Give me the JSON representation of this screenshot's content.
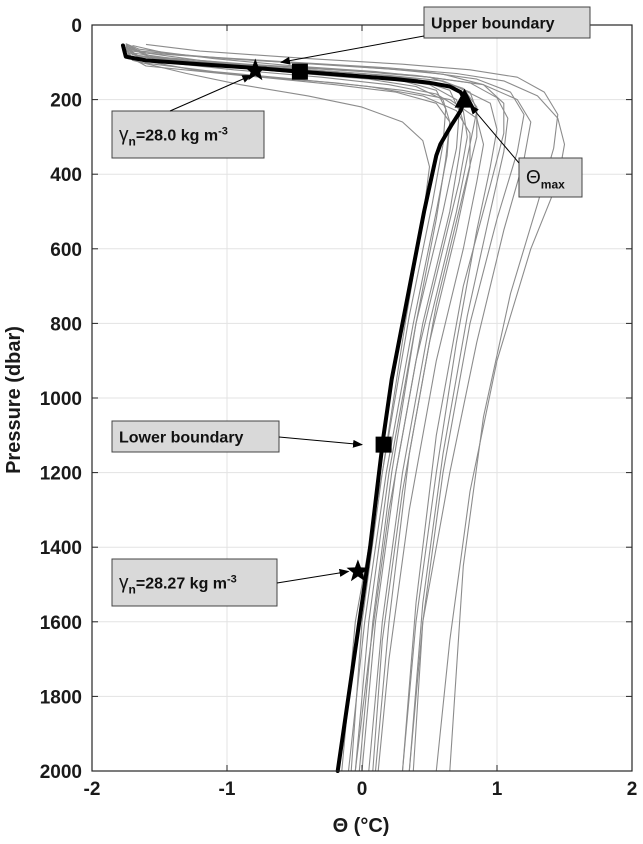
{
  "chart_data": {
    "type": "line",
    "xlabel": "Θ (°C)",
    "ylabel": "Pressure (dbar)",
    "xlim": [
      -2,
      2
    ],
    "ylim": [
      2000,
      0
    ],
    "y_reversed": true,
    "grid": true,
    "xticks": [
      -2,
      -1,
      0,
      1,
      2
    ],
    "yticks": [
      0,
      200,
      400,
      600,
      800,
      1000,
      1200,
      1400,
      1600,
      1800,
      2000
    ],
    "colors": {
      "ensemble": "#8c8c8c",
      "mean": "#000000",
      "grid": "#e3e3e3",
      "annot_box": "#d9d9d9"
    },
    "ensemble_profiles": [
      {
        "points": [
          [
            -1.75,
            55
          ],
          [
            -1.7,
            80
          ],
          [
            -1.1,
            105
          ],
          [
            -0.5,
            125
          ],
          [
            0.1,
            140
          ],
          [
            0.5,
            160
          ],
          [
            0.7,
            200
          ],
          [
            0.75,
            260
          ],
          [
            0.72,
            350
          ],
          [
            0.65,
            500
          ],
          [
            0.45,
            800
          ],
          [
            0.25,
            1200
          ],
          [
            0.1,
            1600
          ],
          [
            0.0,
            2000
          ]
        ]
      },
      {
        "points": [
          [
            -1.75,
            60
          ],
          [
            -1.65,
            85
          ],
          [
            -1.0,
            105
          ],
          [
            -0.4,
            120
          ],
          [
            0.2,
            135
          ],
          [
            0.6,
            150
          ],
          [
            0.8,
            180
          ],
          [
            0.85,
            230
          ],
          [
            0.8,
            320
          ],
          [
            0.7,
            500
          ],
          [
            0.5,
            800
          ],
          [
            0.3,
            1200
          ],
          [
            0.15,
            1600
          ],
          [
            0.05,
            2000
          ]
        ]
      },
      {
        "points": [
          [
            -1.75,
            50
          ],
          [
            -1.7,
            70
          ],
          [
            -1.2,
            95
          ],
          [
            -0.6,
            115
          ],
          [
            0.0,
            130
          ],
          [
            0.4,
            145
          ],
          [
            0.65,
            175
          ],
          [
            0.72,
            230
          ],
          [
            0.7,
            330
          ],
          [
            0.6,
            500
          ],
          [
            0.4,
            800
          ],
          [
            0.2,
            1200
          ],
          [
            0.05,
            1600
          ],
          [
            -0.05,
            2000
          ]
        ]
      },
      {
        "points": [
          [
            -1.75,
            65
          ],
          [
            -1.6,
            95
          ],
          [
            -0.9,
            115
          ],
          [
            -0.2,
            130
          ],
          [
            0.3,
            145
          ],
          [
            0.7,
            165
          ],
          [
            0.95,
            210
          ],
          [
            1.0,
            280
          ],
          [
            0.95,
            380
          ],
          [
            0.85,
            550
          ],
          [
            0.7,
            850
          ],
          [
            0.55,
            1200
          ],
          [
            0.4,
            1600
          ],
          [
            0.3,
            2000
          ]
        ]
      },
      {
        "points": [
          [
            -1.75,
            55
          ],
          [
            -1.55,
            90
          ],
          [
            -0.7,
            110
          ],
          [
            0.0,
            125
          ],
          [
            0.5,
            140
          ],
          [
            0.9,
            160
          ],
          [
            1.15,
            200
          ],
          [
            1.25,
            260
          ],
          [
            1.2,
            360
          ],
          [
            1.05,
            550
          ],
          [
            0.85,
            850
          ],
          [
            0.65,
            1200
          ],
          [
            0.45,
            1600
          ],
          [
            0.35,
            2000
          ]
        ]
      },
      {
        "points": [
          [
            -1.75,
            60
          ],
          [
            -1.65,
            85
          ],
          [
            -1.05,
            110
          ],
          [
            -0.45,
            130
          ],
          [
            0.05,
            145
          ],
          [
            0.4,
            165
          ],
          [
            0.6,
            200
          ],
          [
            0.65,
            260
          ],
          [
            0.62,
            360
          ],
          [
            0.55,
            520
          ],
          [
            0.4,
            800
          ],
          [
            0.22,
            1200
          ],
          [
            0.08,
            1600
          ],
          [
            -0.02,
            2000
          ]
        ]
      },
      {
        "points": [
          [
            -1.7,
            55
          ],
          [
            -1.4,
            80
          ],
          [
            -0.5,
            100
          ],
          [
            0.2,
            115
          ],
          [
            0.7,
            130
          ],
          [
            1.05,
            150
          ],
          [
            1.3,
            190
          ],
          [
            1.45,
            250
          ],
          [
            1.5,
            320
          ],
          [
            1.45,
            420
          ],
          [
            1.25,
            600
          ],
          [
            1.0,
            900
          ],
          [
            0.8,
            1250
          ],
          [
            0.65,
            1650
          ],
          [
            0.55,
            2000
          ]
        ]
      },
      {
        "points": [
          [
            -1.75,
            70
          ],
          [
            -1.6,
            95
          ],
          [
            -0.95,
            120
          ],
          [
            -0.3,
            140
          ],
          [
            0.2,
            160
          ],
          [
            0.55,
            185
          ],
          [
            0.75,
            230
          ],
          [
            0.78,
            300
          ],
          [
            0.72,
            420
          ],
          [
            0.6,
            600
          ],
          [
            0.4,
            900
          ],
          [
            0.2,
            1300
          ],
          [
            0.05,
            1700
          ],
          [
            -0.05,
            2000
          ]
        ]
      },
      {
        "points": [
          [
            -1.75,
            50
          ],
          [
            -1.65,
            65
          ],
          [
            -1.1,
            90
          ],
          [
            -0.5,
            110
          ],
          [
            0.1,
            125
          ],
          [
            0.5,
            140
          ],
          [
            0.75,
            170
          ],
          [
            0.85,
            220
          ],
          [
            0.85,
            300
          ],
          [
            0.75,
            450
          ],
          [
            0.55,
            750
          ],
          [
            0.35,
            1150
          ],
          [
            0.2,
            1600
          ],
          [
            0.1,
            2000
          ]
        ]
      },
      {
        "points": [
          [
            -1.75,
            80
          ],
          [
            -1.6,
            110
          ],
          [
            -0.9,
            135
          ],
          [
            -0.2,
            155
          ],
          [
            0.3,
            175
          ],
          [
            0.65,
            200
          ],
          [
            0.85,
            250
          ],
          [
            0.9,
            320
          ],
          [
            0.85,
            420
          ],
          [
            0.75,
            600
          ],
          [
            0.55,
            900
          ],
          [
            0.35,
            1300
          ],
          [
            0.2,
            1700
          ],
          [
            0.12,
            2000
          ]
        ]
      },
      {
        "points": [
          [
            -1.75,
            55
          ],
          [
            -1.6,
            75
          ],
          [
            -0.8,
            95
          ],
          [
            -0.1,
            110
          ],
          [
            0.45,
            125
          ],
          [
            0.85,
            145
          ],
          [
            1.1,
            180
          ],
          [
            1.2,
            240
          ],
          [
            1.15,
            340
          ],
          [
            1.0,
            520
          ],
          [
            0.8,
            800
          ],
          [
            0.6,
            1200
          ],
          [
            0.45,
            1600
          ],
          [
            0.38,
            2000
          ]
        ]
      },
      {
        "points": [
          [
            -1.75,
            60
          ],
          [
            -1.7,
            90
          ],
          [
            -1.25,
            120
          ],
          [
            -0.75,
            140
          ],
          [
            -0.2,
            160
          ],
          [
            0.25,
            180
          ],
          [
            0.55,
            210
          ],
          [
            0.65,
            260
          ],
          [
            0.63,
            350
          ],
          [
            0.55,
            500
          ],
          [
            0.38,
            800
          ],
          [
            0.18,
            1200
          ],
          [
            0.02,
            1600
          ],
          [
            -0.1,
            2000
          ]
        ]
      },
      {
        "points": [
          [
            -1.6,
            52
          ],
          [
            -1.2,
            70
          ],
          [
            -0.4,
            90
          ],
          [
            0.3,
            105
          ],
          [
            0.8,
            120
          ],
          [
            1.15,
            140
          ],
          [
            1.35,
            180
          ],
          [
            1.45,
            240
          ],
          [
            1.42,
            330
          ],
          [
            1.3,
            480
          ],
          [
            1.1,
            720
          ],
          [
            0.9,
            1050
          ],
          [
            0.75,
            1450
          ],
          [
            0.65,
            2000
          ]
        ]
      },
      {
        "points": [
          [
            -1.75,
            75
          ],
          [
            -1.65,
            100
          ],
          [
            -1.1,
            125
          ],
          [
            -0.5,
            145
          ],
          [
            0.05,
            165
          ],
          [
            0.45,
            190
          ],
          [
            0.7,
            230
          ],
          [
            0.8,
            290
          ],
          [
            0.8,
            380
          ],
          [
            0.7,
            550
          ],
          [
            0.5,
            850
          ],
          [
            0.3,
            1250
          ],
          [
            0.15,
            1650
          ],
          [
            0.08,
            2000
          ]
        ]
      },
      {
        "points": [
          [
            -1.75,
            55
          ],
          [
            -1.7,
            75
          ],
          [
            -1.2,
            100
          ],
          [
            -0.6,
            120
          ],
          [
            -0.1,
            135
          ],
          [
            0.3,
            150
          ],
          [
            0.55,
            175
          ],
          [
            0.62,
            225
          ],
          [
            0.6,
            320
          ],
          [
            0.52,
            480
          ],
          [
            0.35,
            780
          ],
          [
            0.15,
            1200
          ],
          [
            -0.05,
            1600
          ],
          [
            -0.15,
            2000
          ]
        ]
      },
      {
        "points": [
          [
            -1.75,
            60
          ],
          [
            -1.55,
            85
          ],
          [
            -0.85,
            105
          ],
          [
            -0.15,
            120
          ],
          [
            0.4,
            135
          ],
          [
            0.8,
            155
          ],
          [
            1.0,
            195
          ],
          [
            1.08,
            250
          ],
          [
            1.05,
            340
          ],
          [
            0.95,
            500
          ],
          [
            0.78,
            780
          ],
          [
            0.6,
            1150
          ],
          [
            0.45,
            1550
          ],
          [
            0.35,
            2000
          ]
        ]
      },
      {
        "points": [
          [
            -1.75,
            65
          ],
          [
            -1.7,
            95
          ],
          [
            -1.3,
            130
          ],
          [
            -0.9,
            160
          ],
          [
            -0.4,
            190
          ],
          [
            0.0,
            220
          ],
          [
            0.3,
            260
          ],
          [
            0.45,
            310
          ],
          [
            0.5,
            380
          ],
          [
            0.45,
            520
          ],
          [
            0.32,
            800
          ],
          [
            0.15,
            1200
          ],
          [
            0.0,
            1600
          ],
          [
            -0.08,
            2000
          ]
        ]
      },
      {
        "points": [
          [
            -1.75,
            50
          ],
          [
            -1.65,
            70
          ],
          [
            -1.0,
            90
          ],
          [
            -0.35,
            105
          ],
          [
            0.2,
            118
          ],
          [
            0.6,
            132
          ],
          [
            0.9,
            160
          ],
          [
            1.05,
            210
          ],
          [
            1.05,
            290
          ],
          [
            0.95,
            430
          ],
          [
            0.75,
            700
          ],
          [
            0.55,
            1100
          ],
          [
            0.4,
            1550
          ],
          [
            0.3,
            2000
          ]
        ]
      }
    ],
    "mean_profile": {
      "points": [
        [
          -1.77,
          55
        ],
        [
          -1.76,
          70
        ],
        [
          -1.75,
          85
        ],
        [
          -1.6,
          95
        ],
        [
          -1.2,
          105
        ],
        [
          -0.8,
          115
        ],
        [
          -0.46,
          125
        ],
        [
          -0.1,
          135
        ],
        [
          0.25,
          145
        ],
        [
          0.5,
          155
        ],
        [
          0.65,
          165
        ],
        [
          0.73,
          180
        ],
        [
          0.76,
          200
        ],
        [
          0.73,
          230
        ],
        [
          0.66,
          270
        ],
        [
          0.58,
          320
        ],
        [
          0.55,
          350
        ],
        [
          0.52,
          400
        ],
        [
          0.46,
          500
        ],
        [
          0.38,
          650
        ],
        [
          0.3,
          800
        ],
        [
          0.22,
          950
        ],
        [
          0.16,
          1100
        ],
        [
          0.11,
          1250
        ],
        [
          0.06,
          1400
        ],
        [
          0.0,
          1550
        ],
        [
          -0.06,
          1700
        ],
        [
          -0.12,
          1850
        ],
        [
          -0.18,
          2000
        ]
      ]
    },
    "markers": [
      {
        "type": "square",
        "x": -0.46,
        "y": 125
      },
      {
        "type": "star",
        "x": -0.79,
        "y": 122
      },
      {
        "type": "triangle",
        "x": 0.76,
        "y": 200
      },
      {
        "type": "square",
        "x": 0.16,
        "y": 1125
      },
      {
        "type": "star",
        "x": -0.03,
        "y": 1465
      }
    ],
    "annotations": [
      {
        "label_main": "Upper boundary",
        "label_sub": "",
        "label_tail": "",
        "arrow_to": [
          -0.6,
          100
        ]
      },
      {
        "label_main": "γ",
        "label_sub": "n",
        "label_tail": "=28.0 kg m",
        "label_sup": "-3",
        "arrow_to": [
          -0.82,
          135
        ]
      },
      {
        "label_main": "Θ",
        "label_sub": "max",
        "label_tail": "",
        "arrow_to": [
          0.8,
          215
        ]
      },
      {
        "label_main": "Lower boundary",
        "label_sub": "",
        "label_tail": "",
        "arrow_to": [
          0.0,
          1125
        ]
      },
      {
        "label_main": "γ",
        "label_sub": "n",
        "label_tail": "=28.27 kg m",
        "label_sup": "-3",
        "arrow_to": [
          -0.1,
          1465
        ]
      }
    ]
  }
}
